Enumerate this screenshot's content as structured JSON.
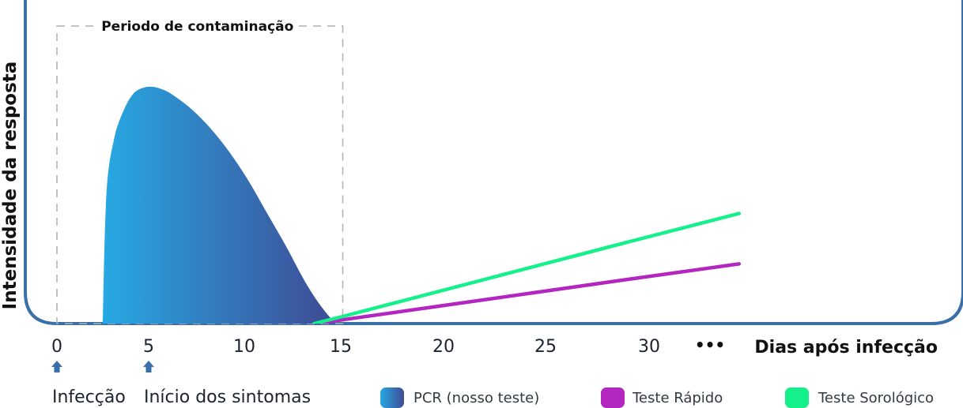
{
  "chart_data": {
    "type": "area",
    "ylabel": "Intensidade da resposta",
    "xlabel": "Dias após infecção",
    "xlim": [
      0,
      30
    ],
    "x_ticks": [
      0,
      5,
      10,
      15,
      20,
      25,
      30
    ],
    "x_ellipsis": "•••",
    "grid": false,
    "period": {
      "label": "Periodo de contaminação",
      "start": 0,
      "end": 15
    },
    "markers": [
      {
        "x": 0,
        "label": "Infecção"
      },
      {
        "x": 5,
        "label": "Início dos sintomas"
      }
    ],
    "series": [
      {
        "name": "PCR (nosso teste)",
        "kind": "area",
        "x": [
          2.4,
          2.6,
          3,
          3.5,
          4,
          4.5,
          5,
          5.5,
          6,
          7,
          8,
          9,
          10,
          11,
          12,
          13,
          13.8,
          14.6
        ],
        "y": [
          0,
          55,
          78,
          90,
          97,
          99.5,
          100,
          99,
          97,
          91,
          83,
          73,
          61,
          47,
          33,
          18,
          8,
          0
        ]
      },
      {
        "name": "Teste Rápido",
        "kind": "line",
        "x": [
          13.5,
          15,
          20,
          25,
          30,
          35.8
        ],
        "y": [
          0,
          1.6,
          7.3,
          13,
          18.7,
          25.2
        ]
      },
      {
        "name": "Teste Sorológico",
        "kind": "line",
        "x": [
          13.5,
          15,
          20,
          25,
          30,
          35.8
        ],
        "y": [
          0,
          3,
          13.5,
          24,
          34.5,
          46.5
        ]
      }
    ],
    "legend_position": "bottom",
    "colors": {
      "frame": "#3a6fa8",
      "pcr_start": "#27a9e3",
      "pcr_end": "#3f4a94",
      "rapido": "#b326c0",
      "sorologico": "#14f08a",
      "period_border": "#b0b0b0",
      "marker": "#3a6fa8"
    }
  }
}
